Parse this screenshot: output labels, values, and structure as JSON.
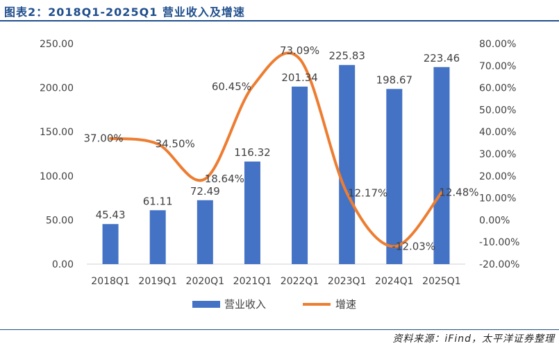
{
  "figure": {
    "title": "图表2：2018Q1-2025Q1 营业收入及增速",
    "source": "资料来源：iFind，太平洋证券整理"
  },
  "chart_data": {
    "type": "bar",
    "categories": [
      "2018Q1",
      "2019Q1",
      "2020Q1",
      "2021Q1",
      "2022Q1",
      "2023Q1",
      "2024Q1",
      "2025Q1"
    ],
    "series": [
      {
        "name": "营业收入",
        "type": "bar",
        "axis": "left",
        "color": "#4472c4",
        "values": [
          45.43,
          61.11,
          72.49,
          116.32,
          201.34,
          225.83,
          198.67,
          223.46
        ],
        "labels": [
          "45.43",
          "61.11",
          "72.49",
          "116.32",
          "201.34",
          "225.83",
          "198.67",
          "223.46"
        ]
      },
      {
        "name": "增速",
        "type": "line",
        "axis": "right",
        "color": "#ed7d31",
        "smooth": true,
        "values": [
          37.0,
          34.5,
          18.64,
          60.45,
          73.09,
          12.17,
          -12.03,
          12.48
        ],
        "labels": [
          "37.00%",
          "34.50%",
          "18.64%",
          "60.45%",
          "73.09%",
          "12.17%",
          "-12.03%",
          "12.48%"
        ]
      }
    ],
    "y_left": {
      "ylim": [
        0,
        250
      ],
      "ticks": [
        0,
        50,
        100,
        150,
        200,
        250
      ],
      "tick_labels": [
        "0.00",
        "50.00",
        "100.00",
        "150.00",
        "200.00",
        "250.00"
      ]
    },
    "y_right": {
      "ylim": [
        -20,
        80
      ],
      "ticks": [
        -20,
        -10,
        0,
        10,
        20,
        30,
        40,
        50,
        60,
        70,
        80
      ],
      "tick_labels": [
        "-20.00%",
        "-10.00%",
        "0.00%",
        "10.00%",
        "20.00%",
        "30.00%",
        "40.00%",
        "50.00%",
        "60.00%",
        "70.00%",
        "80.00%"
      ]
    },
    "grid": false,
    "legend": "bottom-center"
  }
}
